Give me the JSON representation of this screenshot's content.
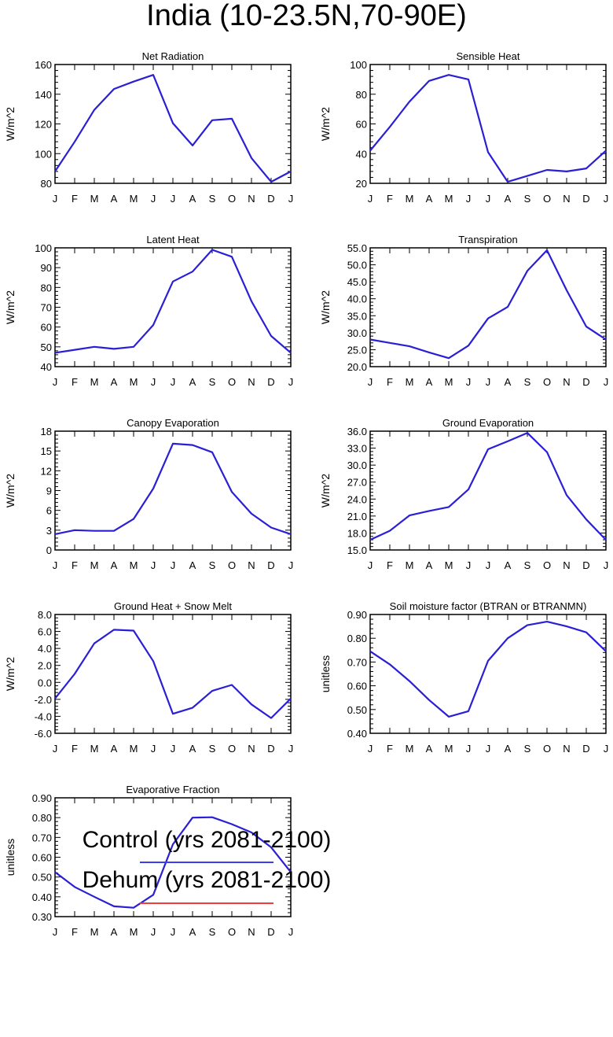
{
  "page_title": "India (10-23.5N,70-90E)",
  "month_ticks": [
    "J",
    "F",
    "M",
    "A",
    "M",
    "J",
    "J",
    "A",
    "S",
    "O",
    "N",
    "D",
    "J"
  ],
  "legend": {
    "control": {
      "label": "Control (yrs 2081-2100)",
      "color": "#3c3cf0"
    },
    "dehum": {
      "label": "Dehum (yrs 2081-2100)",
      "color": "#f03c3c"
    }
  },
  "line_color": "#2b1fd6",
  "chart_data": [
    {
      "type": "line",
      "title": "Net Radiation",
      "ylabel": "W/m^2",
      "ylim": [
        80,
        160
      ],
      "yticks": [
        80,
        100,
        120,
        140,
        160
      ],
      "ytick_labels": [
        "80",
        "100",
        "120",
        "140",
        "160"
      ],
      "series": [
        {
          "name": "Control/Dehum",
          "values": [
            88,
            108,
            129.5,
            143.5,
            148.5,
            153,
            120.5,
            105.5,
            122.5,
            123.5,
            97,
            81,
            88
          ]
        }
      ]
    },
    {
      "type": "line",
      "title": "Sensible Heat",
      "ylabel": "W/m^2",
      "ylim": [
        20,
        100
      ],
      "yticks": [
        20,
        40,
        60,
        80,
        100
      ],
      "ytick_labels": [
        "20",
        "40",
        "60",
        "80",
        "100"
      ],
      "series": [
        {
          "name": "Control/Dehum",
          "values": [
            42,
            58,
            75,
            89,
            93,
            90,
            41,
            21,
            25,
            29,
            28,
            30,
            42
          ]
        }
      ]
    },
    {
      "type": "line",
      "title": "Latent Heat",
      "ylabel": "W/m^2",
      "ylim": [
        40,
        100
      ],
      "yticks": [
        40,
        50,
        60,
        70,
        80,
        90,
        100
      ],
      "ytick_labels": [
        "40",
        "50",
        "60",
        "70",
        "80",
        "90",
        "100"
      ],
      "series": [
        {
          "name": "Control/Dehum",
          "values": [
            47,
            48.5,
            50,
            49,
            50,
            61,
            83,
            88,
            99,
            95.5,
            73,
            55.5,
            47
          ]
        }
      ]
    },
    {
      "type": "line",
      "title": "Transpiration",
      "ylabel": "W/m^2",
      "ylim": [
        20,
        55
      ],
      "yticks": [
        20,
        25,
        30,
        35,
        40,
        45,
        50,
        55
      ],
      "ytick_labels": [
        "20.0",
        "25.0",
        "30.0",
        "35.0",
        "40.0",
        "45.0",
        "50.0",
        "55.0"
      ],
      "series": [
        {
          "name": "Control/Dehum",
          "values": [
            28,
            27,
            26,
            24.2,
            22.5,
            26.2,
            34.2,
            37.6,
            48.2,
            54.3,
            42.5,
            31.8,
            28
          ]
        }
      ]
    },
    {
      "type": "line",
      "title": "Canopy Evaporation",
      "ylabel": "W/m^2",
      "ylim": [
        0,
        18
      ],
      "yticks": [
        0,
        3,
        6,
        9,
        12,
        15,
        18
      ],
      "ytick_labels": [
        "0",
        "3",
        "6",
        "9",
        "12",
        "15",
        "18"
      ],
      "series": [
        {
          "name": "Control/Dehum",
          "values": [
            2.4,
            3,
            2.9,
            2.9,
            4.7,
            9.3,
            16.1,
            15.9,
            14.8,
            8.8,
            5.5,
            3.4,
            2.4
          ]
        }
      ]
    },
    {
      "type": "line",
      "title": "Ground Evaporation",
      "ylabel": "W/m^2",
      "ylim": [
        15,
        36
      ],
      "yticks": [
        15,
        18,
        21,
        24,
        27,
        30,
        33,
        36
      ],
      "ytick_labels": [
        "15.0",
        "18.0",
        "21.0",
        "24.0",
        "27.0",
        "30.0",
        "33.0",
        "36.0"
      ],
      "series": [
        {
          "name": "Control/Dehum",
          "values": [
            16.8,
            18.4,
            21.1,
            21.9,
            22.6,
            25.7,
            32.8,
            34.2,
            35.7,
            32.3,
            24.7,
            20.4,
            16.8
          ]
        }
      ]
    },
    {
      "type": "line",
      "title": "Ground Heat + Snow Melt",
      "ylabel": "W/m^2",
      "ylim": [
        -6,
        8
      ],
      "yticks": [
        -6,
        -4,
        -2,
        0,
        2,
        4,
        6,
        8
      ],
      "ytick_labels": [
        "-6.0",
        "-4.0",
        "-2.0",
        "0.0",
        "2.0",
        "4.0",
        "6.0",
        "8.0"
      ],
      "series": [
        {
          "name": "Control/Dehum",
          "values": [
            -1.9,
            1,
            4.6,
            6.2,
            6.1,
            2.5,
            -3.7,
            -3,
            -1,
            -0.3,
            -2.6,
            -4.2,
            -1.9
          ]
        }
      ]
    },
    {
      "type": "line",
      "title": "Soil moisture factor (BTRAN or BTRANMN)",
      "ylabel": "unitless",
      "ylim": [
        0.4,
        0.9
      ],
      "yticks": [
        0.4,
        0.5,
        0.6,
        0.7,
        0.8,
        0.9
      ],
      "ytick_labels": [
        "0.40",
        "0.50",
        "0.60",
        "0.70",
        "0.80",
        "0.90"
      ],
      "series": [
        {
          "name": "Control/Dehum",
          "values": [
            0.745,
            0.69,
            0.62,
            0.54,
            0.47,
            0.493,
            0.705,
            0.8,
            0.855,
            0.87,
            0.85,
            0.825,
            0.745
          ]
        }
      ]
    },
    {
      "type": "line",
      "title": "Evaporative Fraction",
      "ylabel": "unitless",
      "ylim": [
        0.3,
        0.9
      ],
      "yticks": [
        0.3,
        0.4,
        0.5,
        0.6,
        0.7,
        0.8,
        0.9
      ],
      "ytick_labels": [
        "0.30",
        "0.40",
        "0.50",
        "0.60",
        "0.70",
        "0.80",
        "0.90"
      ],
      "series": [
        {
          "name": "Control/Dehum",
          "values": [
            0.525,
            0.45,
            0.4,
            0.352,
            0.345,
            0.41,
            0.665,
            0.8,
            0.802,
            0.767,
            0.725,
            0.65,
            0.525
          ]
        }
      ]
    }
  ]
}
